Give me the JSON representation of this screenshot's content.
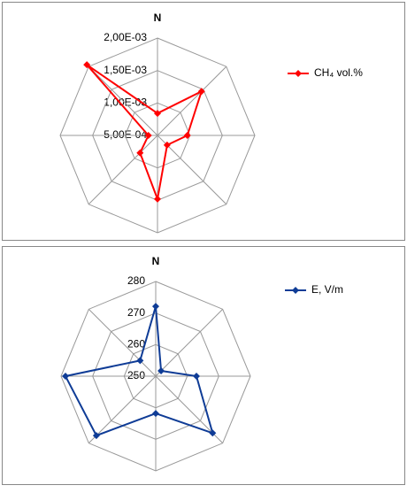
{
  "chart_data": [
    {
      "type": "radar",
      "categories": [
        "N",
        null,
        null,
        null,
        null,
        null,
        null,
        null
      ],
      "rlim": [
        0.0005,
        0.002
      ],
      "rticks": [
        {
          "value": 0.0005,
          "label": "5,00E-04"
        },
        {
          "value": 0.001,
          "label": "1,00E-03"
        },
        {
          "value": 0.0015,
          "label": "1,50E-03"
        },
        {
          "value": 0.002,
          "label": "2,00E-03"
        }
      ],
      "series": [
        {
          "name": "CH₄ vol.%",
          "color": "#ff0000",
          "values": [
            0.00084,
            0.00146,
            0.00096,
            0.00071,
            0.00148,
            0.00088,
            0.00064,
            0.00204
          ]
        }
      ]
    },
    {
      "type": "radar",
      "categories": [
        "N",
        null,
        null,
        null,
        null,
        null,
        null,
        null
      ],
      "rlim": [
        250,
        280
      ],
      "rticks": [
        250,
        260,
        270,
        280
      ],
      "series": [
        {
          "name": "E, V/m",
          "color": "#0f3c96",
          "values": [
            272.1,
            252.4,
            262.9,
            275.5,
            261.8,
            276.6,
            278.6,
            257
          ]
        }
      ]
    }
  ]
}
